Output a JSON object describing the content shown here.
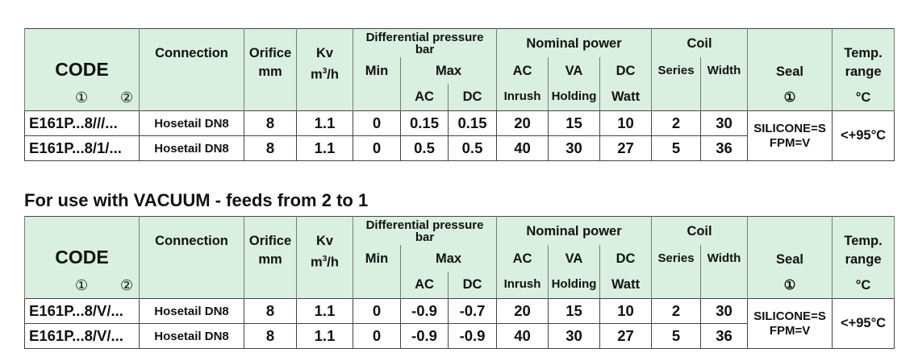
{
  "headers": {
    "code": "CODE",
    "code_markers": [
      "①",
      "②"
    ],
    "connection": "Connection",
    "orifice": [
      "Orifice",
      "mm"
    ],
    "kv": [
      "Kv",
      "m",
      "3",
      "/h"
    ],
    "diff_pressure": [
      "Differential pressure",
      "bar"
    ],
    "min": "Min",
    "max": "Max",
    "max_ac": "AC",
    "max_dc": "DC",
    "nominal_power": "Nominal power",
    "np_cols": [
      [
        "AC",
        "Inrush"
      ],
      [
        "VA",
        "Holding"
      ],
      [
        "DC",
        "Watt"
      ]
    ],
    "coil": "Coil",
    "coil_cols": [
      "Series",
      "Width"
    ],
    "seal": [
      "Seal",
      "①"
    ],
    "temp": [
      "Temp.",
      "range",
      "°C"
    ]
  },
  "tables": [
    {
      "title": "",
      "rows": [
        {
          "code": "E161P...8///...",
          "connection": "Hosetail DN8",
          "orifice": "8",
          "kv": "1.1",
          "min": "0",
          "max_ac": "0.15",
          "max_dc": "0.15",
          "inrush": "20",
          "holding": "15",
          "watt": "10",
          "series": "2",
          "width": "30"
        },
        {
          "code": "E161P...8/1/...",
          "connection": "Hosetail DN8",
          "orifice": "8",
          "kv": "1.1",
          "min": "0",
          "max_ac": "0.5",
          "max_dc": "0.5",
          "inrush": "40",
          "holding": "30",
          "watt": "27",
          "series": "5",
          "width": "36"
        }
      ],
      "seal": [
        "SILICONE=S",
        "FPM=V"
      ],
      "temp": "<+95°C"
    },
    {
      "title": "For use with VACUUM - feeds from 2 to 1",
      "rows": [
        {
          "code": "E161P...8/V/...",
          "connection": "Hosetail DN8",
          "orifice": "8",
          "kv": "1.1",
          "min": "0",
          "max_ac": "-0.9",
          "max_dc": "-0.7",
          "inrush": "20",
          "holding": "15",
          "watt": "10",
          "series": "2",
          "width": "30"
        },
        {
          "code": "E161P...8/V/...",
          "connection": "Hosetail DN8",
          "orifice": "8",
          "kv": "1.1",
          "min": "0",
          "max_ac": "-0.9",
          "max_dc": "-0.9",
          "inrush": "40",
          "holding": "30",
          "watt": "27",
          "series": "5",
          "width": "36"
        }
      ],
      "seal": [
        "SILICONE=S",
        "FPM=V"
      ],
      "temp": "<+95°C"
    }
  ],
  "colors": {
    "header_bg": "#d9efe0",
    "border": "#444444"
  }
}
